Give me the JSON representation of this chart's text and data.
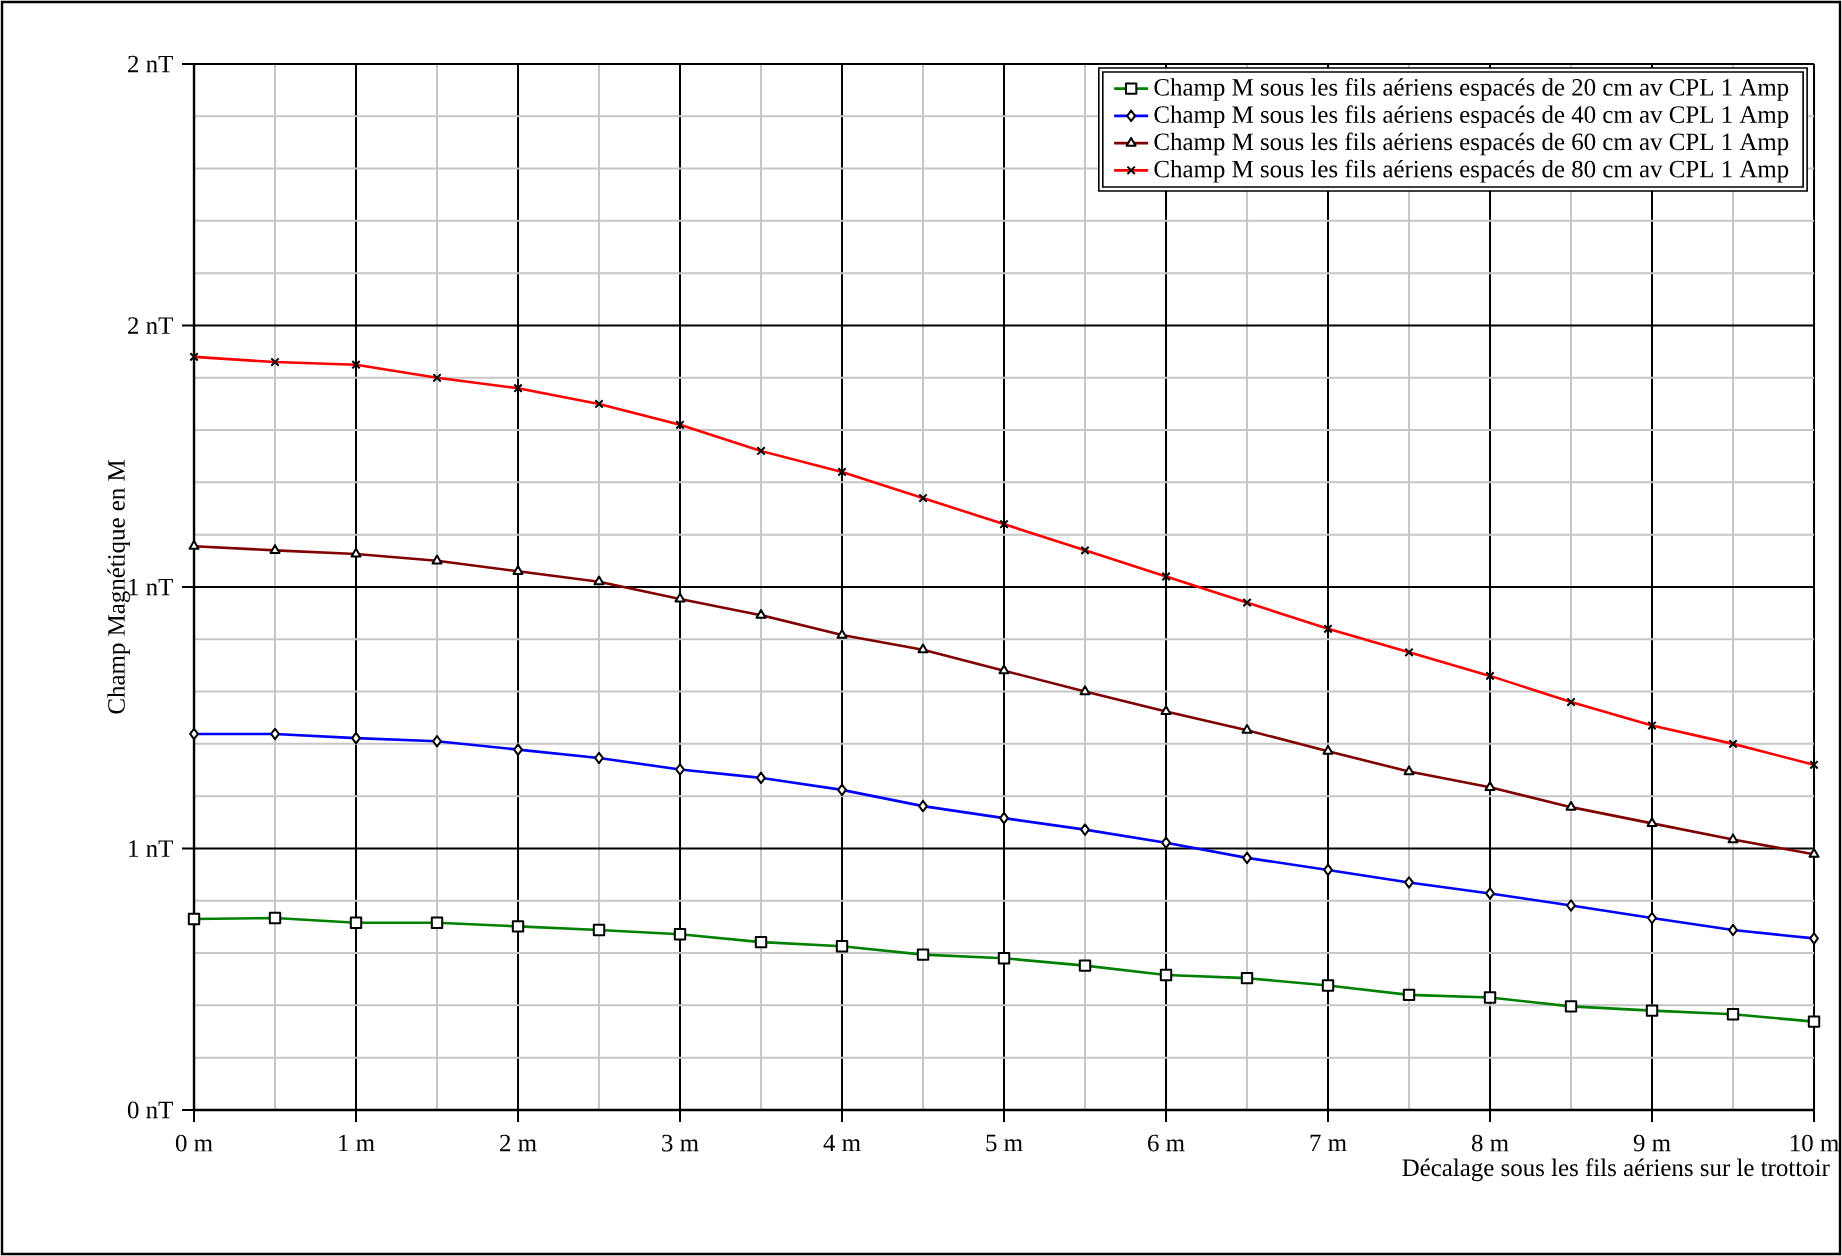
{
  "chart_data": {
    "type": "line",
    "xlabel": "Décalage sous les fils aériens  sur le trottoir",
    "ylabel": "Champ Magnétique en M",
    "x": [
      0,
      0.5,
      1,
      1.5,
      2,
      2.5,
      3,
      3.5,
      4,
      4.5,
      5,
      5.5,
      6,
      6.5,
      7,
      7.5,
      8,
      8.5,
      9,
      9.5,
      10
    ],
    "series": [
      {
        "name": "Champ M sous les fils aériens espacés de 20 cm av CPL 1 Amp",
        "color": "#008000",
        "marker": "square",
        "values": [
          0.365,
          0.367,
          0.358,
          0.358,
          0.351,
          0.344,
          0.336,
          0.321,
          0.313,
          0.297,
          0.29,
          0.276,
          0.258,
          0.252,
          0.238,
          0.22,
          0.215,
          0.198,
          0.19,
          0.183,
          0.169
        ]
      },
      {
        "name": "Champ M sous les fils aériens espacés de 40 cm av CPL 1 Amp",
        "color": "#0000ff",
        "marker": "diamond",
        "values": [
          0.719,
          0.719,
          0.711,
          0.705,
          0.689,
          0.673,
          0.651,
          0.635,
          0.612,
          0.581,
          0.558,
          0.536,
          0.511,
          0.482,
          0.459,
          0.435,
          0.414,
          0.391,
          0.367,
          0.344,
          0.328
        ]
      },
      {
        "name": "Champ M sous les fils aériens espacés de 60 cm av CPL 1 Amp",
        "color": "#800000",
        "marker": "triangle",
        "values": [
          1.078,
          1.07,
          1.063,
          1.05,
          1.03,
          1.01,
          0.977,
          0.946,
          0.908,
          0.88,
          0.84,
          0.8,
          0.762,
          0.726,
          0.686,
          0.647,
          0.617,
          0.579,
          0.548,
          0.517,
          0.489
        ]
      },
      {
        "name": "Champ M sous les fils aériens espacés de 80 cm av CPL 1 Amp",
        "color": "#ff0000",
        "marker": "cross",
        "values": [
          1.44,
          1.43,
          1.425,
          1.4,
          1.38,
          1.35,
          1.31,
          1.26,
          1.22,
          1.17,
          1.12,
          1.07,
          1.02,
          0.97,
          0.92,
          0.875,
          0.83,
          0.78,
          0.735,
          0.7,
          0.66
        ]
      }
    ],
    "xlim": [
      0,
      10
    ],
    "xticks": [
      {
        "value": 0,
        "label": "0 m"
      },
      {
        "value": 1,
        "label": "1 m"
      },
      {
        "value": 2,
        "label": "2 m"
      },
      {
        "value": 3,
        "label": "3 m"
      },
      {
        "value": 4,
        "label": "4 m"
      },
      {
        "value": 5,
        "label": "5 m"
      },
      {
        "value": 6,
        "label": "6 m"
      },
      {
        "value": 7,
        "label": "7 m"
      },
      {
        "value": 8,
        "label": "8 m"
      },
      {
        "value": 9,
        "label": "9 m"
      },
      {
        "value": 10,
        "label": "10 m"
      }
    ],
    "ylim": [
      0,
      2
    ],
    "yticks": [
      {
        "value": 0,
        "label": "0 nT"
      },
      {
        "value": 0.5,
        "label": "1 nT"
      },
      {
        "value": 1,
        "label": "1 nT"
      },
      {
        "value": 1.5,
        "label": "2 nT"
      },
      {
        "value": 2,
        "label": "2 nT"
      }
    ],
    "grid": true,
    "legend": "top right",
    "line_style": "solid"
  }
}
